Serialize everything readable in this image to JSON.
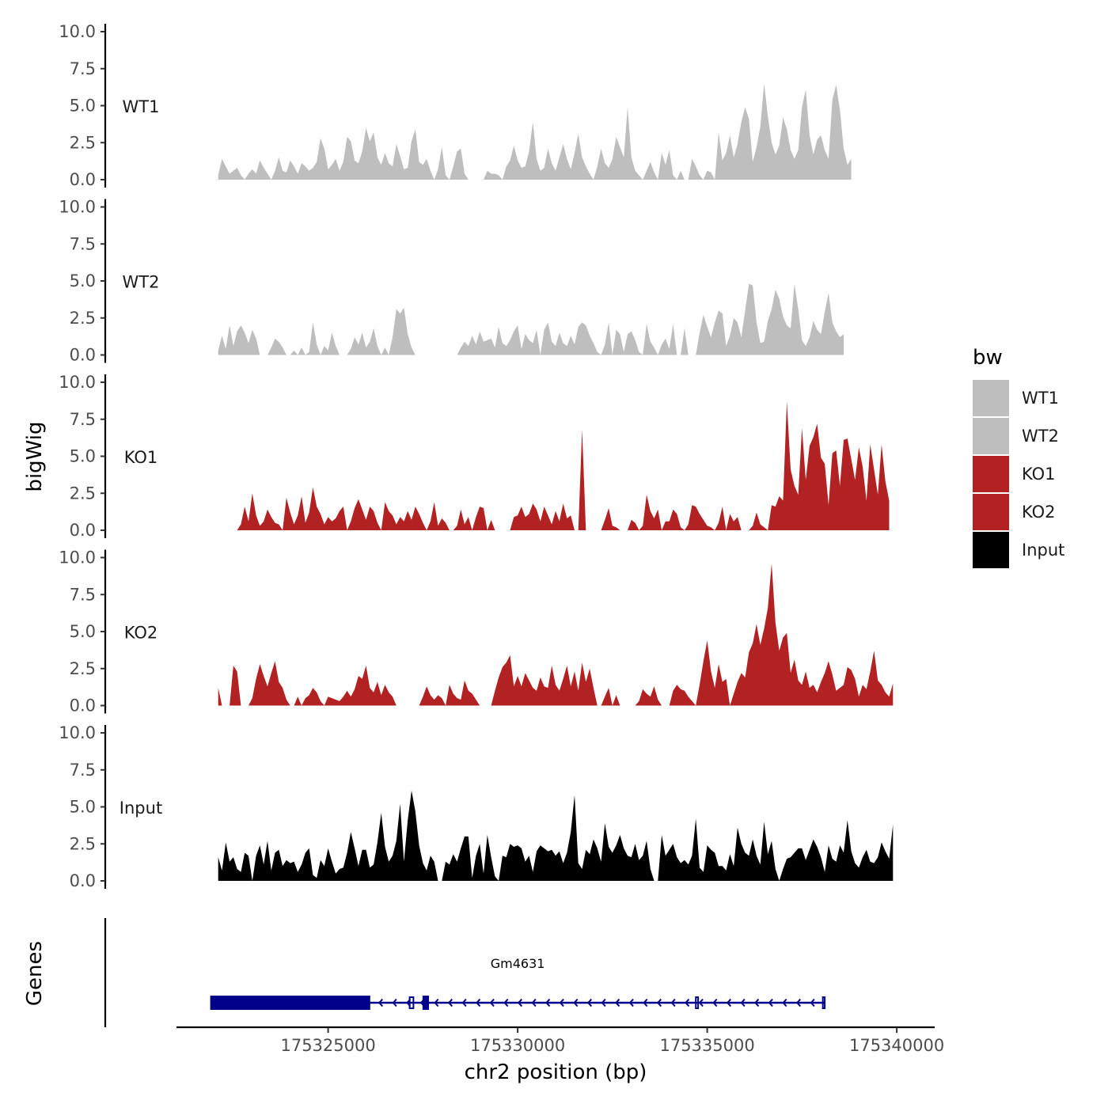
{
  "chart_data": {
    "type": "area",
    "title": "",
    "chromosome": "chr2",
    "xlabel": "chr2 position (bp)",
    "ylabel": "bigWig",
    "genes_panel_label": "Genes",
    "xlim": [
      175321000,
      175341000
    ],
    "x_ticks": [
      175325000,
      175330000,
      175335000,
      175340000
    ],
    "x_tick_labels": [
      "175325000",
      "175330000",
      "175335000",
      "175340000"
    ],
    "ylim": [
      0,
      10
    ],
    "y_ticks": [
      0,
      2.5,
      5,
      7.5,
      10
    ],
    "y_tick_labels": [
      "0.0",
      "2.5",
      "5.0",
      "7.5",
      "10.0"
    ],
    "legend": {
      "title": "bw",
      "position": "right",
      "entries": [
        {
          "label": "WT1",
          "color": "#bebebe"
        },
        {
          "label": "WT2",
          "color": "#bebebe"
        },
        {
          "label": "KO1",
          "color": "#b22222"
        },
        {
          "label": "KO2",
          "color": "#b22222"
        },
        {
          "label": "Input",
          "color": "#000000"
        }
      ]
    },
    "signal_start": 175322100,
    "bin_size_bp": 100,
    "series": [
      {
        "name": "WT1",
        "color": "#bebebe",
        "values": [
          0.3,
          1.4,
          0.9,
          0.4,
          0.6,
          0.8,
          0.3,
          0.0,
          0.4,
          0.7,
          0.4,
          1.3,
          0.8,
          0.4,
          0.0,
          0.6,
          1.5,
          0.6,
          0.5,
          1.3,
          0.9,
          0.4,
          1.1,
          0.9,
          0.6,
          0.8,
          1.2,
          2.8,
          2.1,
          0.7,
          1.0,
          1.4,
          0.6,
          1.2,
          2.9,
          2.6,
          1.3,
          1.1,
          1.9,
          3.5,
          2.6,
          3.2,
          1.5,
          1.0,
          1.8,
          1.1,
          0.9,
          2.4,
          1.6,
          0.7,
          0.8,
          2.6,
          3.4,
          1.2,
          1.0,
          1.4,
          0.6,
          0.0,
          0.7,
          2.2,
          0.3,
          0.0,
          0.9,
          1.9,
          2.1,
          0.4,
          0.0,
          0.0,
          0.0,
          0.0,
          0.0,
          0.6,
          0.4,
          0.4,
          0.3,
          0.0,
          0.9,
          1.3,
          2.3,
          1.3,
          0.8,
          0.9,
          1.9,
          3.9,
          1.4,
          0.6,
          0.8,
          2.1,
          1.1,
          0.6,
          1.5,
          2.4,
          1.4,
          0.7,
          1.8,
          3.1,
          1.5,
          0.9,
          0.4,
          0.0,
          0.9,
          2.1,
          1.1,
          0.8,
          1.4,
          2.9,
          2.2,
          1.5,
          4.9,
          1.5,
          0.6,
          0.3,
          0.0,
          0.6,
          1.2,
          0.5,
          0.0,
          1.8,
          1.0,
          2.0,
          0.3,
          0.0,
          0.6,
          0.0,
          0.0,
          1.4,
          0.9,
          0.3,
          0.0,
          0.6,
          0.5,
          0.0,
          3.2,
          1.3,
          1.8,
          3.0,
          1.5,
          2.4,
          3.9,
          4.9,
          4.1,
          1.2,
          2.2,
          3.6,
          6.5,
          4.3,
          2.5,
          1.7,
          2.3,
          4.2,
          3.4,
          2.0,
          1.4,
          2.0,
          4.9,
          6.1,
          3.0,
          1.7,
          2.7,
          3.0,
          2.0,
          1.4,
          5.4,
          6.4,
          4.7,
          2.1,
          1.0,
          1.4
        ]
      },
      {
        "name": "WT2",
        "color": "#bebebe",
        "values": [
          0.3,
          1.3,
          0.4,
          2.0,
          0.6,
          1.6,
          2.0,
          1.5,
          0.8,
          1.7,
          1.1,
          0.0,
          0.0,
          0.0,
          0.5,
          1.1,
          0.9,
          0.5,
          0.0,
          0.0,
          0.3,
          0.0,
          0.5,
          0.0,
          0.2,
          2.2,
          0.7,
          0.0,
          0.6,
          0.3,
          1.5,
          0.6,
          0.0,
          0.0,
          0.0,
          0.4,
          1.2,
          0.7,
          1.5,
          0.5,
          0.9,
          1.8,
          0.6,
          0.0,
          0.5,
          0.0,
          1.2,
          3.1,
          2.8,
          3.2,
          1.4,
          0.5,
          0.0,
          0.0,
          0.0,
          0.0,
          0.0,
          0.0,
          0.0,
          0.0,
          0.0,
          0.0,
          0.0,
          0.0,
          0.5,
          0.9,
          0.6,
          1.3,
          0.7,
          1.6,
          0.9,
          1.0,
          1.1,
          0.5,
          1.9,
          0.8,
          0.6,
          1.0,
          1.6,
          2.0,
          0.4,
          1.4,
          1.0,
          0.8,
          1.7,
          0.0,
          1.7,
          2.2,
          0.9,
          0.6,
          1.5,
          0.8,
          0.6,
          1.3,
          0.7,
          1.9,
          2.2,
          2.0,
          1.3,
          0.8,
          0.2,
          0.0,
          0.7,
          2.2,
          0.0,
          1.7,
          1.4,
          0.2,
          1.4,
          1.6,
          1.0,
          0.2,
          0.0,
          2.1,
          0.9,
          0.5,
          0.0,
          0.7,
          1.1,
          0.4,
          2.1,
          0.0,
          0.0,
          1.8,
          0.0,
          0.0,
          0.0,
          1.5,
          2.7,
          1.9,
          1.2,
          2.2,
          3.0,
          2.8,
          0.6,
          1.3,
          2.5,
          2.2,
          1.2,
          3.0,
          4.8,
          4.7,
          2.2,
          0.8,
          0.9,
          2.3,
          3.1,
          4.4,
          3.8,
          2.6,
          2.0,
          1.8,
          4.8,
          3.1,
          1.0,
          0.6,
          1.2,
          2.3,
          1.7,
          1.4,
          2.9,
          4.2,
          2.2,
          1.6,
          1.2,
          1.4
        ]
      },
      {
        "name": "KO1",
        "color": "#b22222",
        "values": [
          0.0,
          0.0,
          0.0,
          0.0,
          0.0,
          0.0,
          0.4,
          1.6,
          0.6,
          2.5,
          1.0,
          0.3,
          0.6,
          1.4,
          0.9,
          0.5,
          0.4,
          0.0,
          2.2,
          1.2,
          0.4,
          1.0,
          2.3,
          0.5,
          1.2,
          2.9,
          1.6,
          1.1,
          0.4,
          0.9,
          0.6,
          0.8,
          1.3,
          1.6,
          0.0,
          0.6,
          1.5,
          2.1,
          1.4,
          0.7,
          1.6,
          1.3,
          0.5,
          0.0,
          1.9,
          1.3,
          1.0,
          0.4,
          0.9,
          0.6,
          1.3,
          0.7,
          1.6,
          1.1,
          0.5,
          0.0,
          0.6,
          1.9,
          0.3,
          0.8,
          0.5,
          0.0,
          0.0,
          0.3,
          1.4,
          0.4,
          0.9,
          0.0,
          0.9,
          1.6,
          1.5,
          0.0,
          0.7,
          0.0,
          0.0,
          0.0,
          0.0,
          0.0,
          0.9,
          1.0,
          1.6,
          0.9,
          1.1,
          1.8,
          1.4,
          0.6,
          1.6,
          1.0,
          0.4,
          1.3,
          0.6,
          1.8,
          0.8,
          1.0,
          0.0,
          0.0,
          6.8,
          0.0,
          0.0,
          0.0,
          0.0,
          0.0,
          0.7,
          1.5,
          0.3,
          0.2,
          0.0,
          0.0,
          0.0,
          0.7,
          0.5,
          0.0,
          0.3,
          2.4,
          1.3,
          0.8,
          1.4,
          0.0,
          0.6,
          0.6,
          1.4,
          1.1,
          0.2,
          0.0,
          0.4,
          1.7,
          1.6,
          1.1,
          0.7,
          0.3,
          0.2,
          0.0,
          0.5,
          1.6,
          0.0,
          1.1,
          0.6,
          0.9,
          0.0,
          0.0,
          0.0,
          0.3,
          1.2,
          0.4,
          0.2,
          0.0,
          1.7,
          1.6,
          2.3,
          2.0,
          8.7,
          4.1,
          3.0,
          2.4,
          6.9,
          3.4,
          5.7,
          6.3,
          7.2,
          4.9,
          4.5,
          1.7,
          5.2,
          5.4,
          3.0,
          6.1,
          6.2,
          4.8,
          3.4,
          5.6,
          4.3,
          2.0,
          5.8,
          4.1,
          2.4,
          5.8,
          3.3,
          2.0
        ]
      },
      {
        "name": "KO2",
        "color": "#b22222",
        "values": [
          1.2,
          0.0,
          0.0,
          0.0,
          2.7,
          2.3,
          0.0,
          0.0,
          0.0,
          0.5,
          1.8,
          2.8,
          2.0,
          1.3,
          2.2,
          3.0,
          1.6,
          1.2,
          0.4,
          0.0,
          0.0,
          0.6,
          0.0,
          0.5,
          0.7,
          1.2,
          0.9,
          0.3,
          0.0,
          0.6,
          0.5,
          0.4,
          0.3,
          0.6,
          1.0,
          0.6,
          1.1,
          2.0,
          1.8,
          2.7,
          1.2,
          0.9,
          1.6,
          0.7,
          1.4,
          0.9,
          0.6,
          0.0,
          0.0,
          0.0,
          0.0,
          0.0,
          0.0,
          0.0,
          0.6,
          1.3,
          0.7,
          0.4,
          0.7,
          0.5,
          0.0,
          1.4,
          0.8,
          0.5,
          0.4,
          1.7,
          1.0,
          0.8,
          0.4,
          0.0,
          0.0,
          0.0,
          0.0,
          1.0,
          1.9,
          2.6,
          2.9,
          3.4,
          1.3,
          2.0,
          1.3,
          2.2,
          1.7,
          1.2,
          1.0,
          1.9,
          1.3,
          1.2,
          2.7,
          1.4,
          1.0,
          1.8,
          2.7,
          1.3,
          2.3,
          1.0,
          2.9,
          1.6,
          2.5,
          1.2,
          0.0,
          0.0,
          0.6,
          1.2,
          0.0,
          0.7,
          0.0,
          0.0,
          0.0,
          0.0,
          0.0,
          0.3,
          1.1,
          0.8,
          0.6,
          1.3,
          0.4,
          0.0,
          0.0,
          0.0,
          1.0,
          1.4,
          1.1,
          1.0,
          0.6,
          0.3,
          0.0,
          1.4,
          3.0,
          4.4,
          2.3,
          1.2,
          2.8,
          1.6,
          1.8,
          0.0,
          0.8,
          1.6,
          2.2,
          1.9,
          3.6,
          4.2,
          5.5,
          4.1,
          5.2,
          6.6,
          9.6,
          5.6,
          3.7,
          4.6,
          4.9,
          2.2,
          3.1,
          1.7,
          1.4,
          2.3,
          1.2,
          1.4,
          0.9,
          1.6,
          2.2,
          3.0,
          2.1,
          1.0,
          1.2,
          1.4,
          2.6,
          2.4,
          1.8,
          0.6,
          1.4,
          1.1,
          2.3,
          3.7,
          1.7,
          1.4,
          0.9,
          0.6,
          1.5
        ]
      },
      {
        "name": "Input",
        "color": "#000000",
        "values": [
          1.6,
          0.7,
          2.6,
          1.3,
          1.6,
          0.8,
          0.6,
          1.9,
          1.7,
          0.0,
          1.7,
          2.4,
          1.1,
          2.7,
          0.7,
          1.9,
          2.1,
          1.0,
          1.4,
          1.2,
          1.3,
          0.6,
          1.1,
          1.9,
          2.2,
          0.4,
          0.2,
          1.4,
          1.0,
          2.2,
          1.3,
          0.5,
          0.8,
          0.9,
          1.9,
          3.3,
          2.2,
          1.0,
          2.1,
          2.1,
          0.9,
          1.1,
          2.6,
          4.6,
          2.3,
          1.3,
          1.7,
          2.7,
          5.2,
          1.3,
          4.1,
          6.1,
          4.7,
          2.4,
          1.2,
          0.7,
          1.7,
          1.3,
          0.0,
          0.0,
          1.3,
          1.1,
          1.8,
          1.3,
          2.2,
          3.0,
          3.0,
          0.2,
          1.7,
          2.5,
          0.5,
          3.1,
          1.6,
          0.3,
          0.0,
          1.7,
          1.6,
          2.5,
          2.3,
          2.4,
          2.2,
          1.3,
          1.7,
          0.6,
          2.0,
          2.4,
          2.2,
          2.0,
          2.1,
          1.7,
          2.0,
          1.2,
          1.9,
          3.3,
          5.8,
          1.2,
          0.8,
          2.1,
          1.8,
          2.8,
          2.2,
          1.3,
          3.9,
          2.3,
          1.9,
          2.4,
          3.1,
          2.2,
          1.7,
          1.6,
          2.5,
          1.4,
          1.7,
          2.7,
          0.8,
          0.0,
          0.0,
          3.1,
          1.7,
          2.1,
          2.5,
          1.6,
          1.2,
          1.4,
          1.1,
          1.7,
          4.2,
          0.9,
          0.6,
          2.4,
          2.1,
          1.9,
          1.0,
          1.0,
          0.7,
          1.8,
          1.0,
          3.6,
          2.5,
          1.9,
          1.7,
          2.8,
          1.7,
          1.1,
          4.0,
          1.8,
          2.7,
          0.8,
          0.0,
          0.8,
          1.5,
          1.6,
          1.9,
          2.2,
          2.2,
          1.4,
          2.1,
          2.8,
          2.3,
          1.6,
          0.6,
          2.4,
          1.5,
          1.3,
          2.4,
          1.9,
          4.1,
          2.0,
          1.2,
          0.9,
          1.6,
          2.1,
          1.3,
          1.2,
          1.6,
          2.6,
          2.0,
          1.5,
          3.8
        ]
      }
    ],
    "genes": [
      {
        "name": "Gm4631",
        "strand": "-",
        "color": "#00008b",
        "start": 175321900,
        "end": 175338100,
        "exons": [
          {
            "start": 175321900,
            "end": 175326100,
            "thick": true
          },
          {
            "start": 175327150,
            "end": 175327250,
            "thick": false
          },
          {
            "start": 175327500,
            "end": 175327650,
            "thick": true
          },
          {
            "start": 175334700,
            "end": 175334760,
            "thick": false
          },
          {
            "start": 175338050,
            "end": 175338100,
            "thick": false
          }
        ]
      }
    ]
  }
}
